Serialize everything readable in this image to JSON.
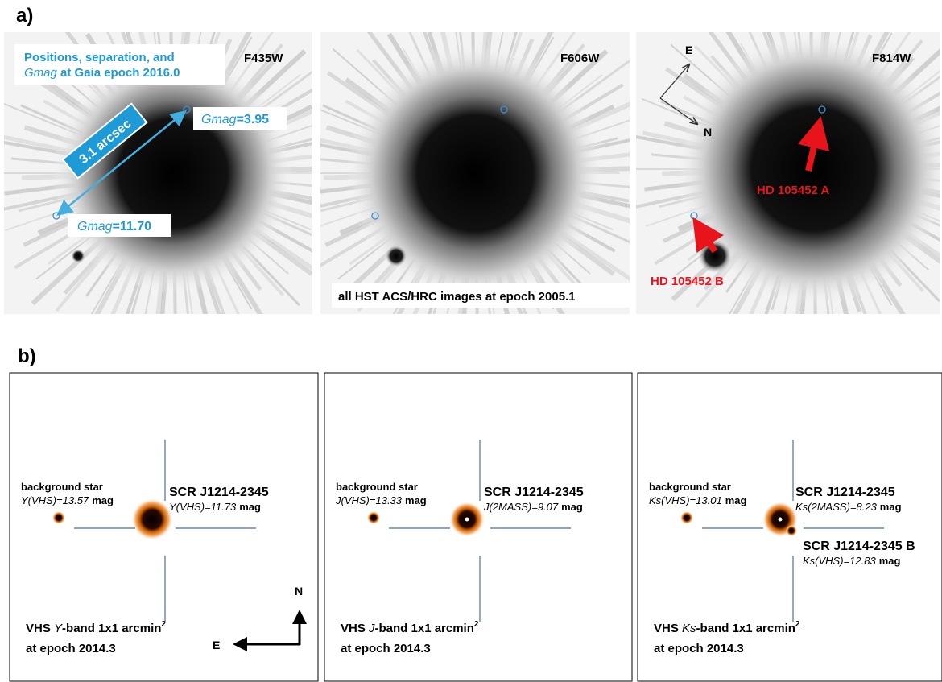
{
  "panel_a": {
    "label": "a)",
    "filters": [
      "F435W",
      "F606W",
      "F814W"
    ],
    "gaia_note": {
      "line1": "Positions, separation, and",
      "mag_name": "Gmag",
      "line2_rest": " at Gaia epoch 2016.0"
    },
    "separation": "3.1 arcsec",
    "mag_a": {
      "name": "Gmag",
      "value": "=3.95"
    },
    "mag_b": {
      "name": "Gmag",
      "value": "=11.70"
    },
    "epoch_note": "all HST ACS/HRC images at epoch 2005.1",
    "compass": {
      "east": "E",
      "north": "N"
    },
    "star_a": "HD 105452 A",
    "star_b": "HD 105452 B"
  },
  "panel_b": {
    "label": "b)",
    "background_label": "background star",
    "target_name": "SCR J1214-2345",
    "unit": "mag",
    "caption": {
      "prefix": "VHS ",
      "suffix": "-band 1x1 arcmin",
      "sup": "2",
      "epoch": "at epoch 2014.3"
    },
    "bands": [
      {
        "band": "Y",
        "background_mag": "Y(VHS)=13.57",
        "target_mag": "Y(VHS)=11.73"
      },
      {
        "band": "J",
        "background_mag": "J(VHS)=13.33",
        "target_mag": "J(2MASS)=9.07"
      },
      {
        "band": "Ks",
        "background_mag": "Ks(VHS)=13.01",
        "target_mag": "Ks(2MASS)=8.23"
      }
    ],
    "companion": {
      "name": "SCR J1214-2345 B",
      "mag": "Ks(VHS)=12.83"
    },
    "compass": {
      "north": "N",
      "east": "E"
    }
  }
}
